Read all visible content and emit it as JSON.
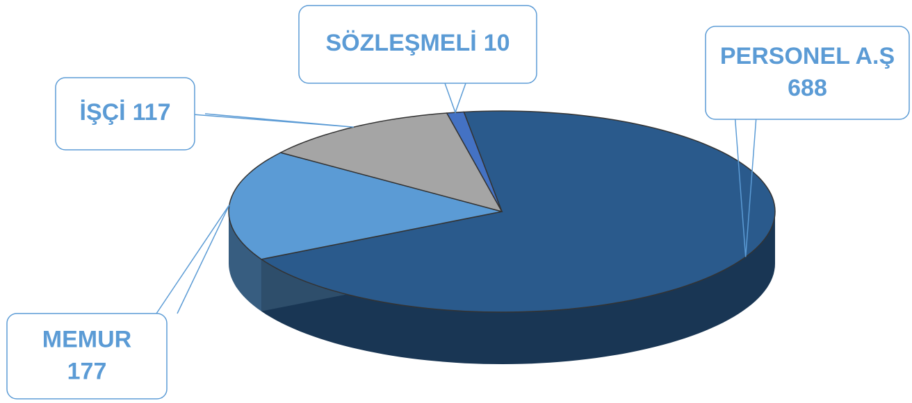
{
  "chart_data": {
    "type": "pie",
    "categories": [
      "PERSONEL A.Ş",
      "MEMUR",
      "İŞÇİ",
      "SÖZLEŞMELİ"
    ],
    "values": [
      688,
      177,
      117,
      10
    ],
    "colors": [
      "#2a5a8c",
      "#5b9bd5",
      "#a5a5a5",
      "#4472c4"
    ]
  }
}
